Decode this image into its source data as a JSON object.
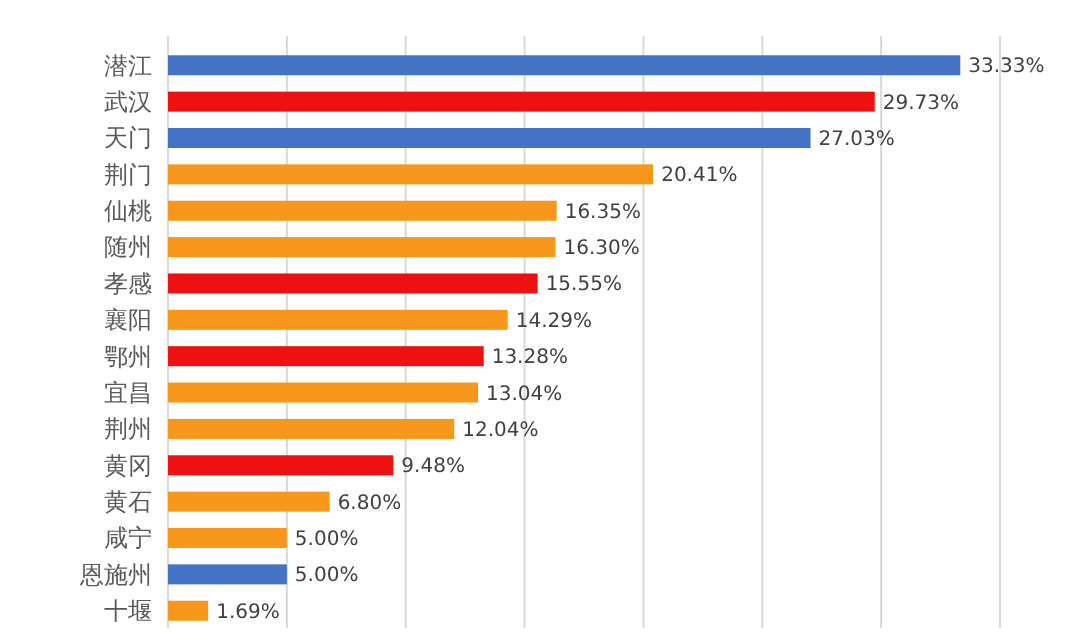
{
  "chart_data": {
    "type": "bar",
    "orientation": "horizontal",
    "categories": [
      "潜江",
      "武汉",
      "天门",
      "荆门",
      "仙桃",
      "随州",
      "孝感",
      "襄阳",
      "鄂州",
      "宜昌",
      "荆州",
      "黄冈",
      "黄石",
      "咸宁",
      "恩施州",
      "十堰"
    ],
    "values": [
      33.33,
      29.73,
      27.03,
      20.41,
      16.35,
      16.3,
      15.55,
      14.29,
      13.28,
      13.04,
      12.04,
      9.48,
      6.8,
      5.0,
      5.0,
      1.69
    ],
    "value_labels": [
      "33.33%",
      "29.73%",
      "27.03%",
      "20.41%",
      "16.35%",
      "16.30%",
      "15.55%",
      "14.29%",
      "13.28%",
      "13.04%",
      "12.04%",
      "9.48%",
      "6.80%",
      "5.00%",
      "5.00%",
      "1.69%"
    ],
    "colors": [
      "#4472c4",
      "#ee1111",
      "#4472c4",
      "#f7981d",
      "#f7981d",
      "#f7981d",
      "#ee1111",
      "#f7981d",
      "#ee1111",
      "#f7981d",
      "#f7981d",
      "#ee1111",
      "#f7981d",
      "#f7981d",
      "#4472c4",
      "#f7981d"
    ],
    "xlim": [
      0,
      35
    ],
    "xticks": [
      {
        "value": 0,
        "label": null
      },
      {
        "value": 5,
        "label": null
      },
      {
        "value": 10,
        "label": null
      },
      {
        "value": 15,
        "label": null
      },
      {
        "value": 20,
        "label": null
      },
      {
        "value": 25,
        "label": null
      },
      {
        "value": 30,
        "label": null
      },
      {
        "value": 35,
        "label": null
      }
    ],
    "grid": "x",
    "tick_labels": "y"
  }
}
